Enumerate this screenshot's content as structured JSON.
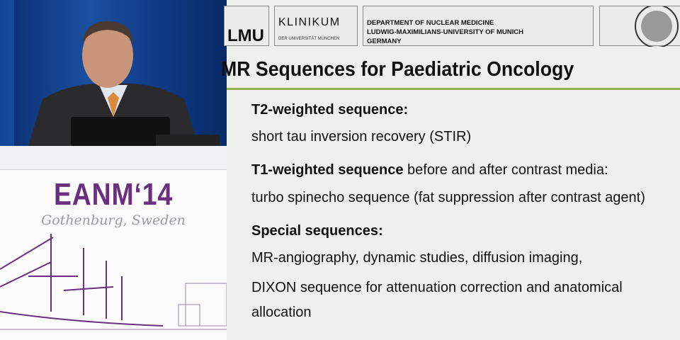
{
  "banner": {
    "event": "EANM‘14",
    "location": "Gothenburg, Sweden"
  },
  "slide": {
    "logos": {
      "lmu": "LMU",
      "klinikum": "KLINIKUM",
      "klinikum_sub": "DER UNIVERSITÄT MÜNCHEN",
      "department": [
        "DEPARTMENT OF NUCLEAR MEDICINE",
        "LUDWIG-MAXIMILIANS-UNIVERSITY OF MUNICH",
        "GERMANY"
      ]
    },
    "title": "MR Sequences for Paediatric Oncology",
    "accent_color": "#95b05a",
    "items": [
      {
        "heading": "T2-weighted sequence:",
        "heading_rest": "",
        "lines": [
          "short tau inversion recovery (STIR)"
        ]
      },
      {
        "heading": "T1-weighted sequence",
        "heading_rest": " before and after contrast media:",
        "lines": [
          "turbo spinecho sequence (fat suppression after contrast agent)"
        ]
      },
      {
        "heading": "Special sequences:",
        "heading_rest": "",
        "lines": [
          "MR-angiography, dynamic studies, diffusion imaging,",
          "DIXON sequence for attenuation correction and anatomical",
          "allocation"
        ]
      }
    ]
  }
}
